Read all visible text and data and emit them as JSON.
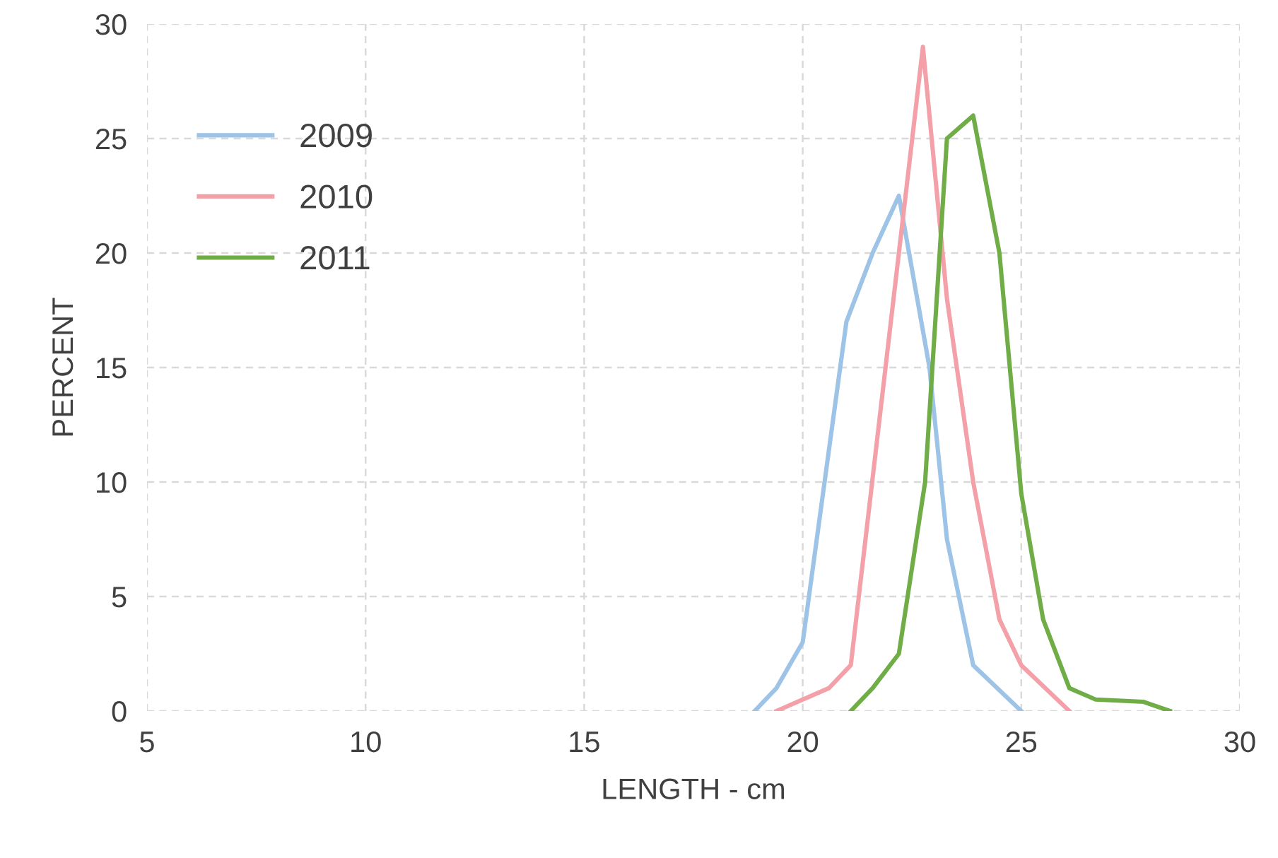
{
  "chart_data": {
    "type": "line",
    "xlabel": "LENGTH - cm",
    "ylabel": "PERCENT",
    "xlim": [
      5,
      30
    ],
    "xticks": [
      5,
      10,
      15,
      20,
      25,
      30
    ],
    "ylim": [
      0,
      30
    ],
    "yticks": [
      0,
      5,
      10,
      15,
      20,
      25,
      30
    ],
    "grid": true,
    "legend": "top left",
    "marker": "none",
    "line_style": "solid",
    "series": [
      {
        "name": "2009",
        "color": "#9dc3e6",
        "x": [
          18.9,
          19.4,
          20.0,
          21.0,
          21.6,
          22.2,
          22.9,
          23.3,
          23.9,
          25.0
        ],
        "values": [
          0,
          1,
          3,
          17,
          20,
          22.5,
          15,
          7.5,
          2,
          0
        ]
      },
      {
        "name": "2010",
        "color": "#f4a0a8",
        "x": [
          19.4,
          20.6,
          21.1,
          22.75,
          23.3,
          23.9,
          24.5,
          25.0,
          26.1
        ],
        "values": [
          0,
          1,
          2,
          29,
          18,
          10,
          4,
          2,
          0
        ]
      },
      {
        "name": "2011",
        "color": "#70ad47",
        "x": [
          21.1,
          21.6,
          22.2,
          22.8,
          23.3,
          23.9,
          24.5,
          25.0,
          25.5,
          26.1,
          26.7,
          27.8,
          28.4
        ],
        "values": [
          0,
          1,
          2.5,
          10,
          25,
          26,
          20,
          9.5,
          4,
          1,
          0.5,
          0.4,
          0
        ]
      }
    ]
  }
}
